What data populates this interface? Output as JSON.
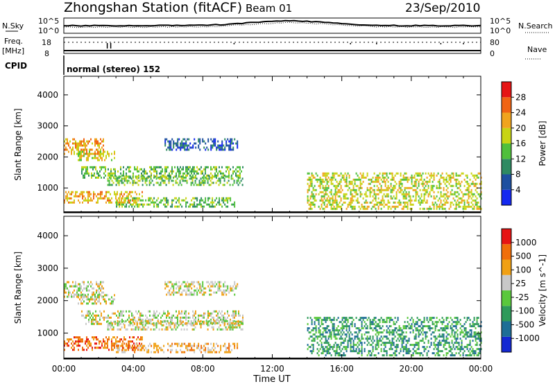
{
  "header": {
    "station": "Zhongshan Station (fitACF)",
    "beam": "Beam 01",
    "date": "23/Sep/2010"
  },
  "summary": {
    "nsky_label": "N.Sky",
    "nsky_tick_hi": "10^5",
    "nsky_tick_lo": "10^0",
    "nsearch_label": "N.Search",
    "nsearch_tick_hi": "10^5",
    "nsearch_tick_lo": "10^0",
    "freq_label_1": "Freq.",
    "freq_label_2": "[MHz]",
    "freq_tick_hi": "18",
    "freq_tick_lo": "8",
    "nave_label": "Nave",
    "nave_tick_hi": "80",
    "nave_tick_lo": "0",
    "cpid_label": "CPID",
    "cpid_value": "normal (stereo) 152"
  },
  "x_axis": {
    "label": "Time UT",
    "ticks": [
      "00:00",
      "04:00",
      "08:00",
      "12:00",
      "16:00",
      "20:00",
      "00:00"
    ]
  },
  "chart_data": [
    {
      "type": "heatmap",
      "name": "power",
      "ylabel": "Slant Range [km]",
      "yticks": [
        1000,
        2000,
        3000,
        4000
      ],
      "ylim": [
        200,
        4600
      ],
      "xlim": [
        0,
        24
      ],
      "colorbar_label": "Power [dB]",
      "colorbar_ticks": [
        "4",
        "8",
        "12",
        "16",
        "20",
        "24",
        "28"
      ],
      "colorbar_colors": [
        "#1428f0",
        "#1e50a0",
        "#2e8a62",
        "#50c03c",
        "#c8d414",
        "#f0a41e",
        "#f06414",
        "#e61414"
      ],
      "echo_regions": [
        {
          "t": [
            0.0,
            2.3
          ],
          "r": [
            2100,
            2600
          ],
          "level": 5
        },
        {
          "t": [
            0.8,
            2.9
          ],
          "r": [
            1900,
            2200
          ],
          "level": 4
        },
        {
          "t": [
            1.0,
            10.3
          ],
          "r": [
            1300,
            1700
          ],
          "level": 3
        },
        {
          "t": [
            2.5,
            10.3
          ],
          "r": [
            1100,
            1400
          ],
          "level": 3
        },
        {
          "t": [
            5.8,
            10.0
          ],
          "r": [
            2200,
            2600
          ],
          "level": 1
        },
        {
          "t": [
            0.0,
            4.5
          ],
          "r": [
            500,
            900
          ],
          "level": 5
        },
        {
          "t": [
            3.0,
            10.0
          ],
          "r": [
            400,
            700
          ],
          "level": 3
        },
        {
          "t": [
            14.0,
            24.0
          ],
          "r": [
            300,
            1500
          ],
          "level": 4
        }
      ]
    },
    {
      "type": "heatmap",
      "name": "velocity",
      "ylabel": "Slant Range [km]",
      "yticks": [
        1000,
        2000,
        3000,
        4000
      ],
      "ylim": [
        200,
        4600
      ],
      "xlim": [
        0,
        24
      ],
      "colorbar_label": "Velocity [m s^-1]",
      "colorbar_ticks": [
        "1000",
        "500",
        "100",
        "25",
        "-25",
        "-100",
        "-500",
        "-1000"
      ],
      "colorbar_colors": [
        "#1428d2",
        "#1e6e96",
        "#2e9a5a",
        "#5ac83c",
        "#c8c8c8",
        "#f0a014",
        "#f06e0a",
        "#e61414"
      ],
      "echo_regions": [
        {
          "t": [
            0.0,
            2.3
          ],
          "r": [
            2100,
            2600
          ],
          "level": 4
        },
        {
          "t": [
            0.8,
            2.9
          ],
          "r": [
            1900,
            2200
          ],
          "level": 4
        },
        {
          "t": [
            1.0,
            10.3
          ],
          "r": [
            1300,
            1700
          ],
          "level": 4
        },
        {
          "t": [
            2.5,
            10.3
          ],
          "r": [
            1100,
            1400
          ],
          "level": 4
        },
        {
          "t": [
            5.8,
            10.0
          ],
          "r": [
            2200,
            2600
          ],
          "level": 4
        },
        {
          "t": [
            0.0,
            4.5
          ],
          "r": [
            500,
            900
          ],
          "level": 6
        },
        {
          "t": [
            3.0,
            10.0
          ],
          "r": [
            400,
            700
          ],
          "level": 5
        },
        {
          "t": [
            14.0,
            24.0
          ],
          "r": [
            300,
            1500
          ],
          "level": 2
        }
      ]
    }
  ]
}
